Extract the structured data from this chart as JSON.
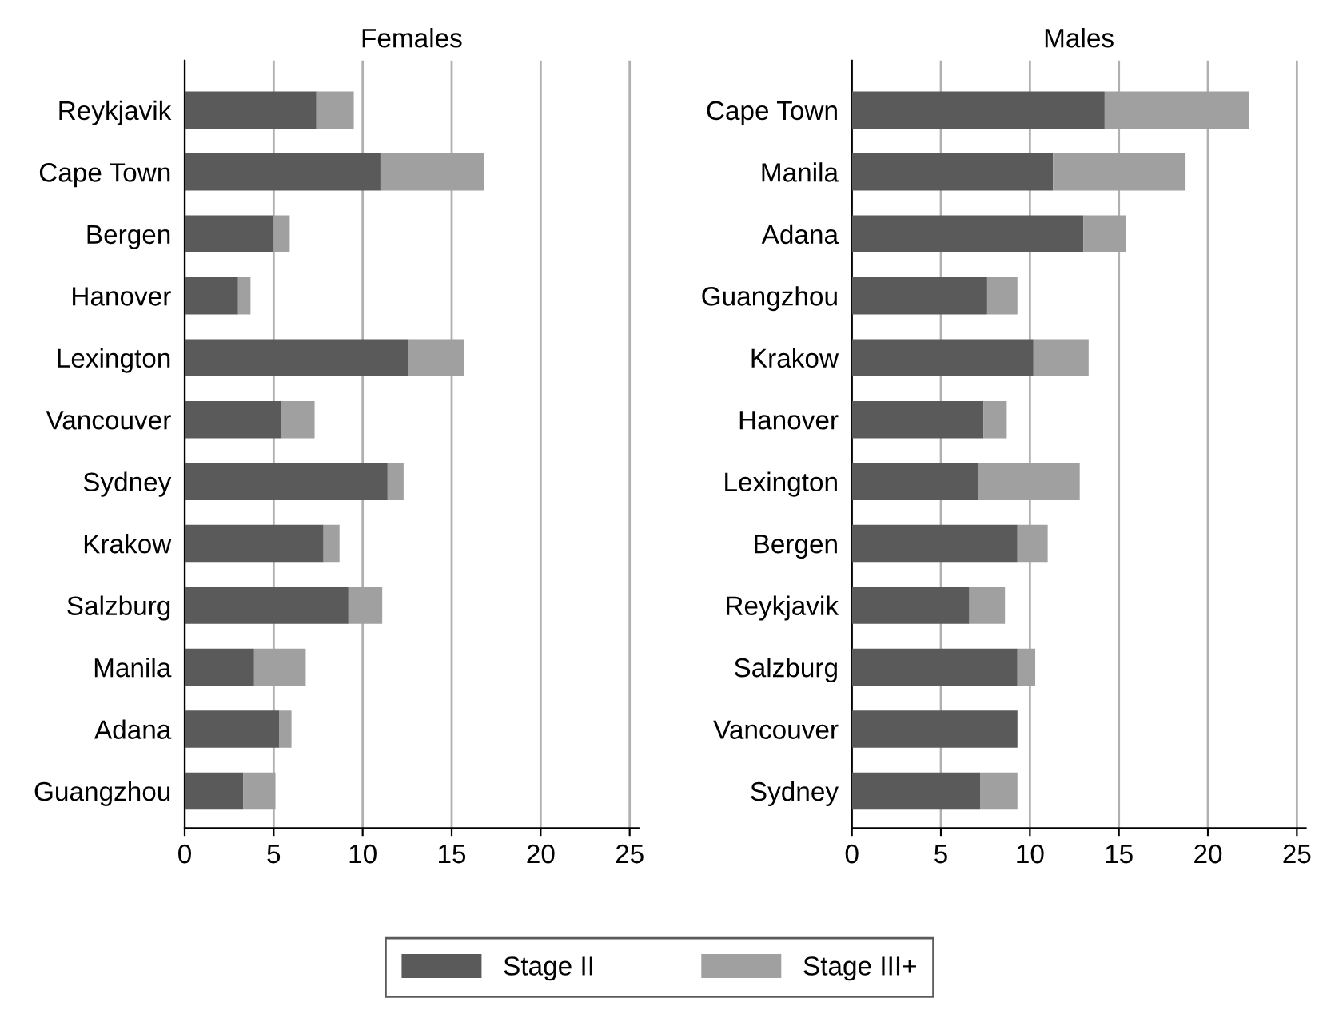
{
  "chart_data": [
    {
      "type": "bar",
      "title": "Females",
      "orientation": "horizontal",
      "stacked": true,
      "grid": "x",
      "legend": "bottom",
      "categories": [
        "Reykjavik",
        "Cape Town",
        "Bergen",
        "Hanover",
        "Lexington",
        "Vancouver",
        "Sydney",
        "Krakow",
        "Salzburg",
        "Manila",
        "Adana",
        "Guangzhou"
      ],
      "series": [
        {
          "name": "Stage II",
          "color": "#5a5a5a",
          "values": [
            7.4,
            11.0,
            5.0,
            3.0,
            12.6,
            5.4,
            11.4,
            7.8,
            9.2,
            3.9,
            5.3,
            3.3
          ]
        },
        {
          "name": "Stage III+",
          "color": "#a0a0a0",
          "values": [
            2.1,
            5.8,
            0.9,
            0.7,
            3.1,
            1.9,
            0.9,
            0.9,
            1.9,
            2.9,
            0.7,
            1.8
          ]
        }
      ],
      "xlim": [
        0,
        25.5
      ],
      "xticks": [
        0,
        5,
        10,
        15,
        20,
        25
      ]
    },
    {
      "type": "bar",
      "title": "Males",
      "orientation": "horizontal",
      "stacked": true,
      "grid": "x",
      "legend": "bottom",
      "categories": [
        "Cape Town",
        "Manila",
        "Adana",
        "Guangzhou",
        "Krakow",
        "Hanover",
        "Lexington",
        "Bergen",
        "Reykjavik",
        "Salzburg",
        "Vancouver",
        "Sydney"
      ],
      "series": [
        {
          "name": "Stage II",
          "color": "#5a5a5a",
          "values": [
            14.2,
            11.3,
            13.0,
            7.6,
            10.2,
            7.4,
            7.1,
            9.3,
            6.6,
            9.3,
            9.3,
            7.2
          ]
        },
        {
          "name": "Stage III+",
          "color": "#a0a0a0",
          "values": [
            8.1,
            7.4,
            2.4,
            1.7,
            3.1,
            1.3,
            5.7,
            1.7,
            2.0,
            1.0,
            0,
            2.1
          ]
        }
      ],
      "xlim": [
        0,
        25.5
      ],
      "xticks": [
        0,
        5,
        10,
        15,
        20,
        25
      ]
    }
  ]
}
